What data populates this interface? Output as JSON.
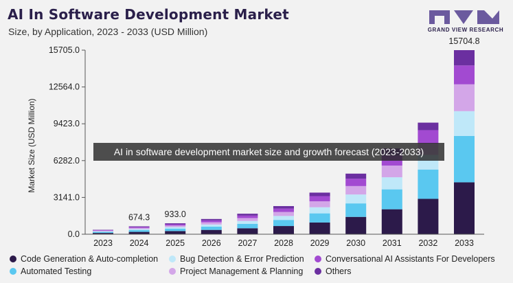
{
  "header": {
    "title": "AI In Software Development Market",
    "subtitle": "Size, by Application, 2023 - 2033 (USD Million)",
    "brand": "GRAND VIEW RESEARCH"
  },
  "overlay_text": "AI in software development market size and growth forecast (2023-2033)",
  "colors": {
    "background": "#f2f2f2",
    "code_generation": "#2c1a4a",
    "automated_testing": "#5ac8f0",
    "bug_detection": "#bfe8f9",
    "project_management": "#d3a6e8",
    "conversational_ai": "#a24ad1",
    "others": "#6b2fa0",
    "logo": "#6b5a9e"
  },
  "chart_data": {
    "type": "bar",
    "stacked": true,
    "title": "AI In Software Development Market",
    "subtitle": "Size, by Application, 2023 - 2033 (USD Million)",
    "xlabel": "",
    "ylabel": "Market Size (USD Million)",
    "ylim": [
      0,
      15705.0
    ],
    "yticks": [
      "0.0",
      "3141.0",
      "6282.0",
      "9423.0",
      "12564.0",
      "15705.0"
    ],
    "categories": [
      "2023",
      "2024",
      "2025",
      "2026",
      "2027",
      "2028",
      "2029",
      "2030",
      "2031",
      "2032",
      "2033"
    ],
    "series": [
      {
        "name": "Code Generation & Auto-completion",
        "color": "#2c1a4a",
        "values": [
          110,
          200,
          270,
          370,
          510,
          700,
          1000,
          1480,
          2130,
          3020,
          4430
        ]
      },
      {
        "name": "Automated Testing",
        "color": "#5ac8f0",
        "values": [
          90,
          150,
          210,
          280,
          380,
          520,
          780,
          1150,
          1700,
          2500,
          3950
        ]
      },
      {
        "name": "Bug Detection & Error Prediction",
        "color": "#bfe8f9",
        "values": [
          50,
          90,
          130,
          180,
          240,
          340,
          520,
          760,
          1030,
          1250,
          2120
        ]
      },
      {
        "name": "Project Management & Planning",
        "color": "#d3a6e8",
        "values": [
          55,
          95,
          130,
          190,
          250,
          340,
          510,
          720,
          1000,
          960,
          2290
        ]
      },
      {
        "name": "Conversational AI Assistants For Developers",
        "color": "#a24ad1",
        "values": [
          50,
          85,
          110,
          160,
          210,
          290,
          440,
          630,
          860,
          1150,
          1610
        ]
      },
      {
        "name": "Others",
        "color": "#6b2fa0",
        "values": [
          25,
          54,
          83,
          120,
          160,
          210,
          300,
          430,
          600,
          640,
          1305
        ]
      }
    ],
    "data_labels": [
      {
        "category": "2024",
        "text": "674.3"
      },
      {
        "category": "2025",
        "text": "933.0"
      },
      {
        "category": "2033",
        "text": "15704.8"
      }
    ],
    "grid": false,
    "legend_position": "bottom"
  }
}
